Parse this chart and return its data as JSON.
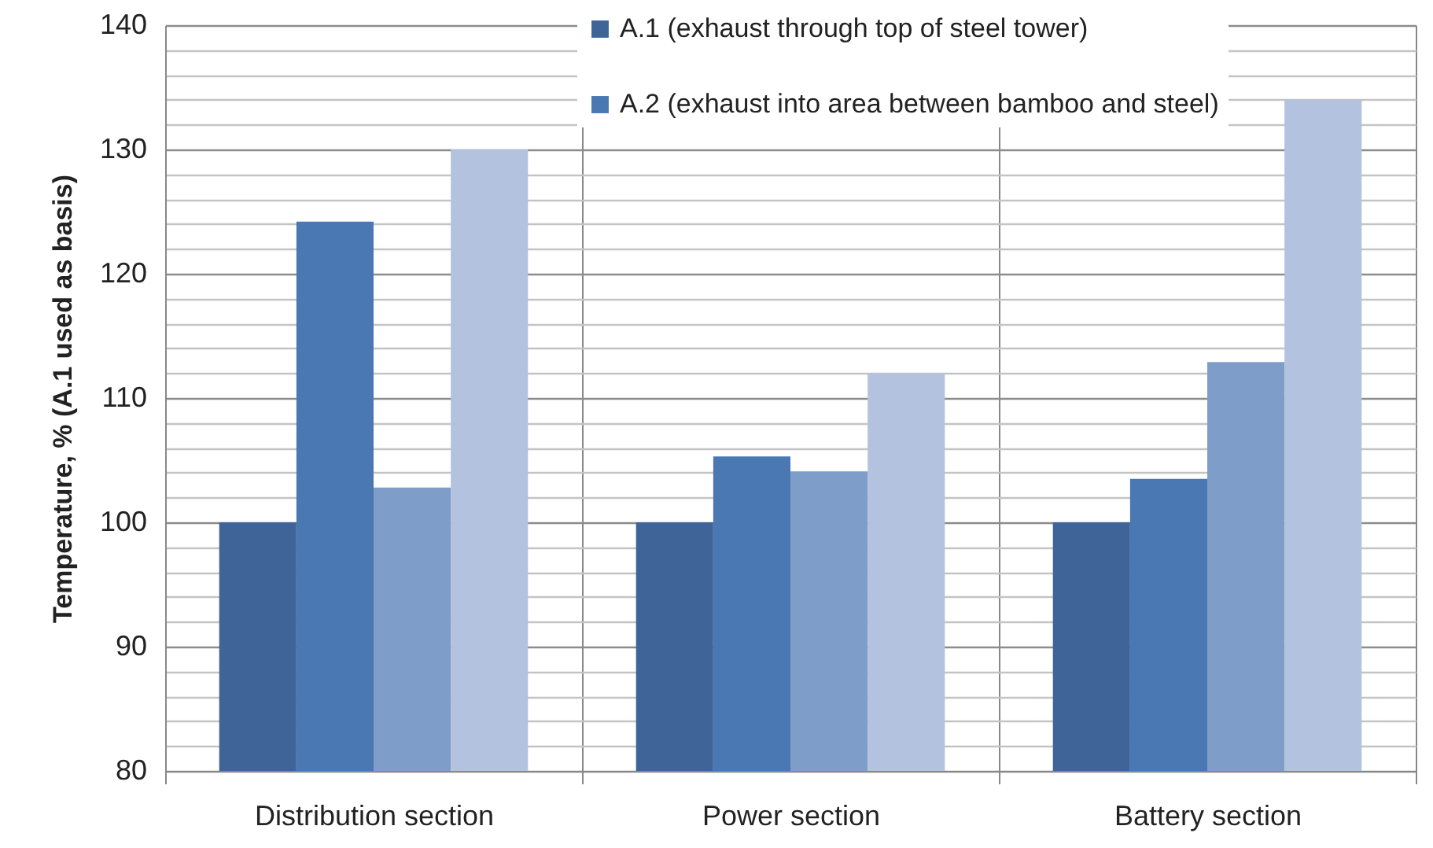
{
  "chart_data": {
    "type": "bar",
    "ylabel": "Temperature, % (A.1 used as basis)",
    "categories": [
      "Distribution section",
      "Power section",
      "Battery section"
    ],
    "series": [
      {
        "name": "A.1 (exhaust through top of steel tower)",
        "color": "#3f6498",
        "values": [
          100,
          100,
          100
        ]
      },
      {
        "name": "A.2 (exhaust into area between bamboo and steel)",
        "color": "#4a78b3",
        "values": [
          124.2,
          105.3,
          103.5
        ]
      },
      {
        "color": "#7f9dc9",
        "values": [
          102.8,
          104.1,
          112.9
        ]
      },
      {
        "color": "#b3c3df",
        "values": [
          130,
          112,
          134
        ]
      }
    ],
    "ylim": [
      80,
      140
    ],
    "yticks": [
      80,
      {
        "value": 82,
        "label": null
      },
      {
        "value": 84,
        "label": null
      },
      {
        "value": 86,
        "label": null
      },
      {
        "value": 88,
        "label": null
      },
      90,
      {
        "value": 92,
        "label": null
      },
      {
        "value": 94,
        "label": null
      },
      {
        "value": 96,
        "label": null
      },
      {
        "value": 98,
        "label": null
      },
      100,
      {
        "value": 102,
        "label": null
      },
      {
        "value": 104,
        "label": null
      },
      {
        "value": 106,
        "label": null
      },
      {
        "value": 108,
        "label": null
      },
      110,
      {
        "value": 112,
        "label": null
      },
      {
        "value": 114,
        "label": null
      },
      {
        "value": 116,
        "label": null
      },
      {
        "value": 118,
        "label": null
      },
      120,
      {
        "value": 122,
        "label": null
      },
      {
        "value": 124,
        "label": null
      },
      {
        "value": 126,
        "label": null
      },
      {
        "value": 128,
        "label": null
      },
      130,
      {
        "value": 132,
        "label": null
      },
      {
        "value": 134,
        "label": null
      },
      {
        "value": 136,
        "label": null
      },
      {
        "value": 138,
        "label": null
      },
      140
    ],
    "grid": true,
    "legend": "top"
  }
}
